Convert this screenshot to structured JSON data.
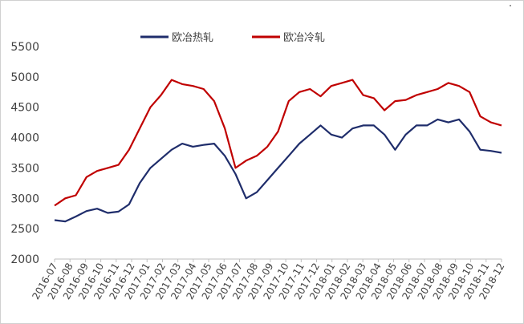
{
  "chart_data": {
    "type": "line",
    "title": "",
    "xlabel": "",
    "ylabel": "",
    "ylim": [
      2000,
      5500
    ],
    "yticks": [
      "5500",
      "5000",
      "4500",
      "4000",
      "3500",
      "3000",
      "2500",
      "2000"
    ],
    "x_tick_labels": [
      "2016-07",
      "2016-08",
      "2016-09",
      "2016-10",
      "2016-11",
      "2016-12",
      "2017-01",
      "2017-02",
      "2017-03",
      "2017-04",
      "2017-05",
      "2017-06",
      "2017-07",
      "2017-08",
      "2017-09",
      "2017-10",
      "2017-11",
      "2017-12",
      "2018-01",
      "2018-02",
      "2018-03",
      "2018-04",
      "2018-05",
      "2018-06",
      "2018-07",
      "2018-08",
      "2018-09",
      "2018-10",
      "2018-11",
      "2018-12"
    ],
    "grid": false,
    "legend_position": "top-center",
    "series": [
      {
        "name": "欧冶热轧",
        "color": "#1f2d6b",
        "values": [
          2640,
          2620,
          2700,
          2790,
          2830,
          2760,
          2780,
          2900,
          3250,
          3500,
          3650,
          3800,
          3900,
          3850,
          3880,
          3900,
          3700,
          3400,
          3000,
          3100,
          3300,
          3500,
          3700,
          3900,
          4050,
          4200,
          4050,
          4000,
          4150,
          4200,
          4200,
          4050,
          3800,
          4050,
          4200,
          4200,
          4300,
          4250,
          4300,
          4100,
          3800,
          3780,
          3750
        ]
      },
      {
        "name": "欧冶冷轧",
        "color": "#c00000",
        "values": [
          2880,
          3000,
          3050,
          3350,
          3450,
          3500,
          3550,
          3800,
          4150,
          4500,
          4700,
          4950,
          4880,
          4850,
          4800,
          4600,
          4150,
          3500,
          3620,
          3700,
          3850,
          4100,
          4600,
          4750,
          4800,
          4680,
          4850,
          4900,
          4950,
          4700,
          4650,
          4450,
          4600,
          4620,
          4700,
          4750,
          4800,
          4900,
          4850,
          4750,
          4350,
          4250,
          4200
        ]
      }
    ]
  }
}
